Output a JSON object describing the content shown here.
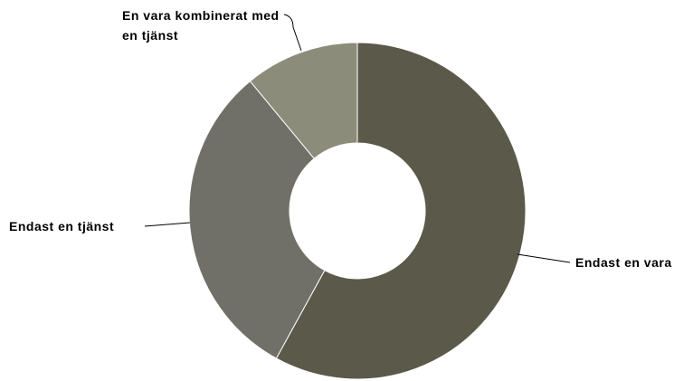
{
  "chart_data": {
    "type": "donut",
    "categories": [
      "Endast en vara",
      "Endast en tjänst",
      "En vara kombinerat med en tjänst"
    ],
    "values": [
      58,
      31,
      11
    ],
    "colors": [
      "#5b5a4a",
      "#717068",
      "#8c8c7a"
    ]
  }
}
